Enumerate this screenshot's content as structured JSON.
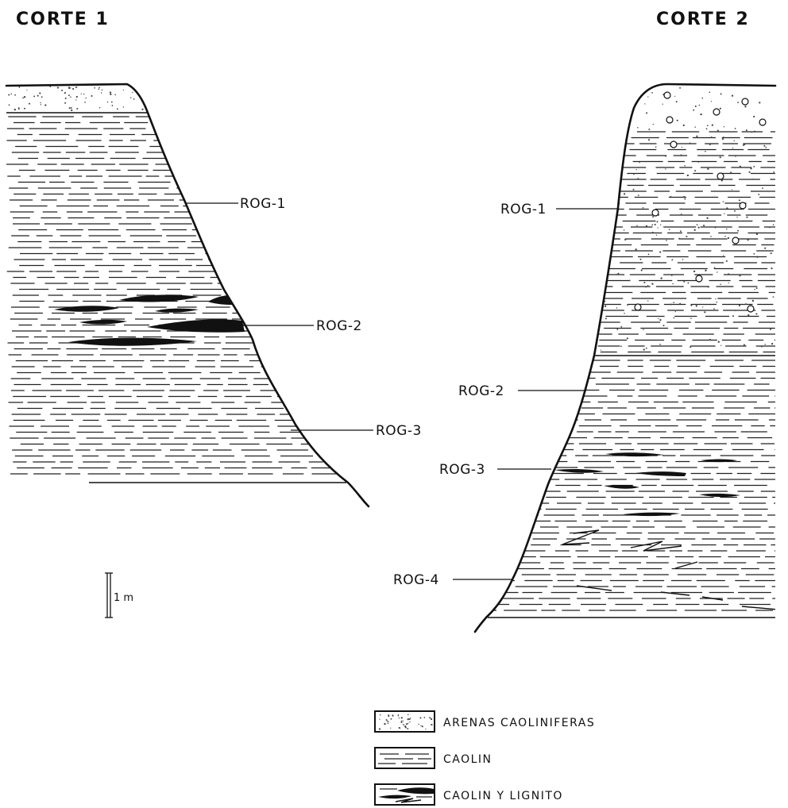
{
  "sections": [
    {
      "title": "CORTE 1",
      "samples": [
        "ROG-1",
        "ROG-2",
        "ROG-3"
      ]
    },
    {
      "title": "CORTE 2",
      "samples": [
        "ROG-1",
        "ROG-2",
        "ROG-3",
        "ROG-4"
      ]
    }
  ],
  "scale": {
    "label": "1 m"
  },
  "legend": [
    {
      "pattern": "sand",
      "label": "ARENAS CAOLINIFERAS"
    },
    {
      "pattern": "kaolin",
      "label": "CAOLIN"
    },
    {
      "pattern": "kaolin-lignite",
      "label": "CAOLIN Y LIGNITO"
    }
  ],
  "colors": {
    "ink": "#111111",
    "background": "#ffffff"
  }
}
